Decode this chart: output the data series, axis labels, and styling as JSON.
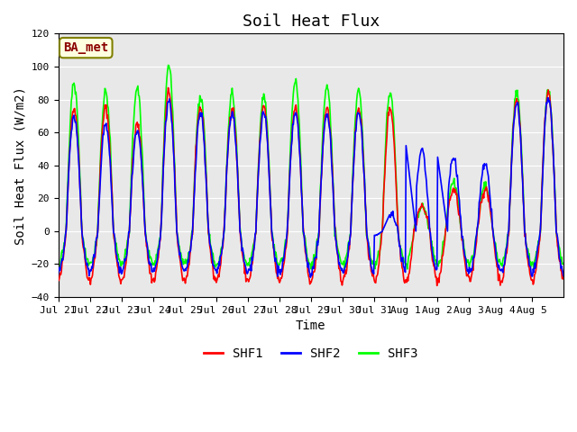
{
  "title": "Soil Heat Flux",
  "ylabel": "Soil Heat Flux (W/m2)",
  "xlabel": "Time",
  "ylim": [
    -40,
    120
  ],
  "yticks": [
    -40,
    -20,
    0,
    20,
    40,
    60,
    80,
    100,
    120
  ],
  "xtick_labels": [
    "Jul 21",
    "Jul 22",
    "Jul 23",
    "Jul 24",
    "Jul 25",
    "Jul 26",
    "Jul 27",
    "Jul 28",
    "Jul 29",
    "Jul 30",
    "Jul 31",
    "Aug 1",
    "Aug 2",
    "Aug 3",
    "Aug 4",
    "Aug 5"
  ],
  "legend_entries": [
    "SHF1",
    "SHF2",
    "SHF3"
  ],
  "line_colors": [
    "red",
    "blue",
    "lime"
  ],
  "site_label": "BA_met",
  "bg_color": "#e8e8e8",
  "title_fontsize": 13,
  "axis_fontsize": 10,
  "tick_fontsize": 8,
  "legend_fontsize": 10,
  "line_width": 1.2,
  "n_days": 16,
  "points_per_day": 48,
  "base_amplitudes_shf1": [
    75,
    75,
    65,
    85,
    75,
    75,
    75,
    75,
    75,
    75,
    75,
    15,
    25,
    25,
    80,
    85
  ],
  "base_amplitudes_shf2": [
    70,
    65,
    60,
    80,
    72,
    72,
    72,
    72,
    72,
    72,
    10,
    50,
    45,
    40,
    78,
    82
  ],
  "base_amplitudes_shf3": [
    90,
    85,
    87,
    100,
    82,
    84,
    82,
    91,
    88,
    85,
    85,
    15,
    30,
    28,
    85,
    86
  ],
  "night_min_shf1": -30,
  "night_min_shf2": -25,
  "night_min_shf3": -20
}
